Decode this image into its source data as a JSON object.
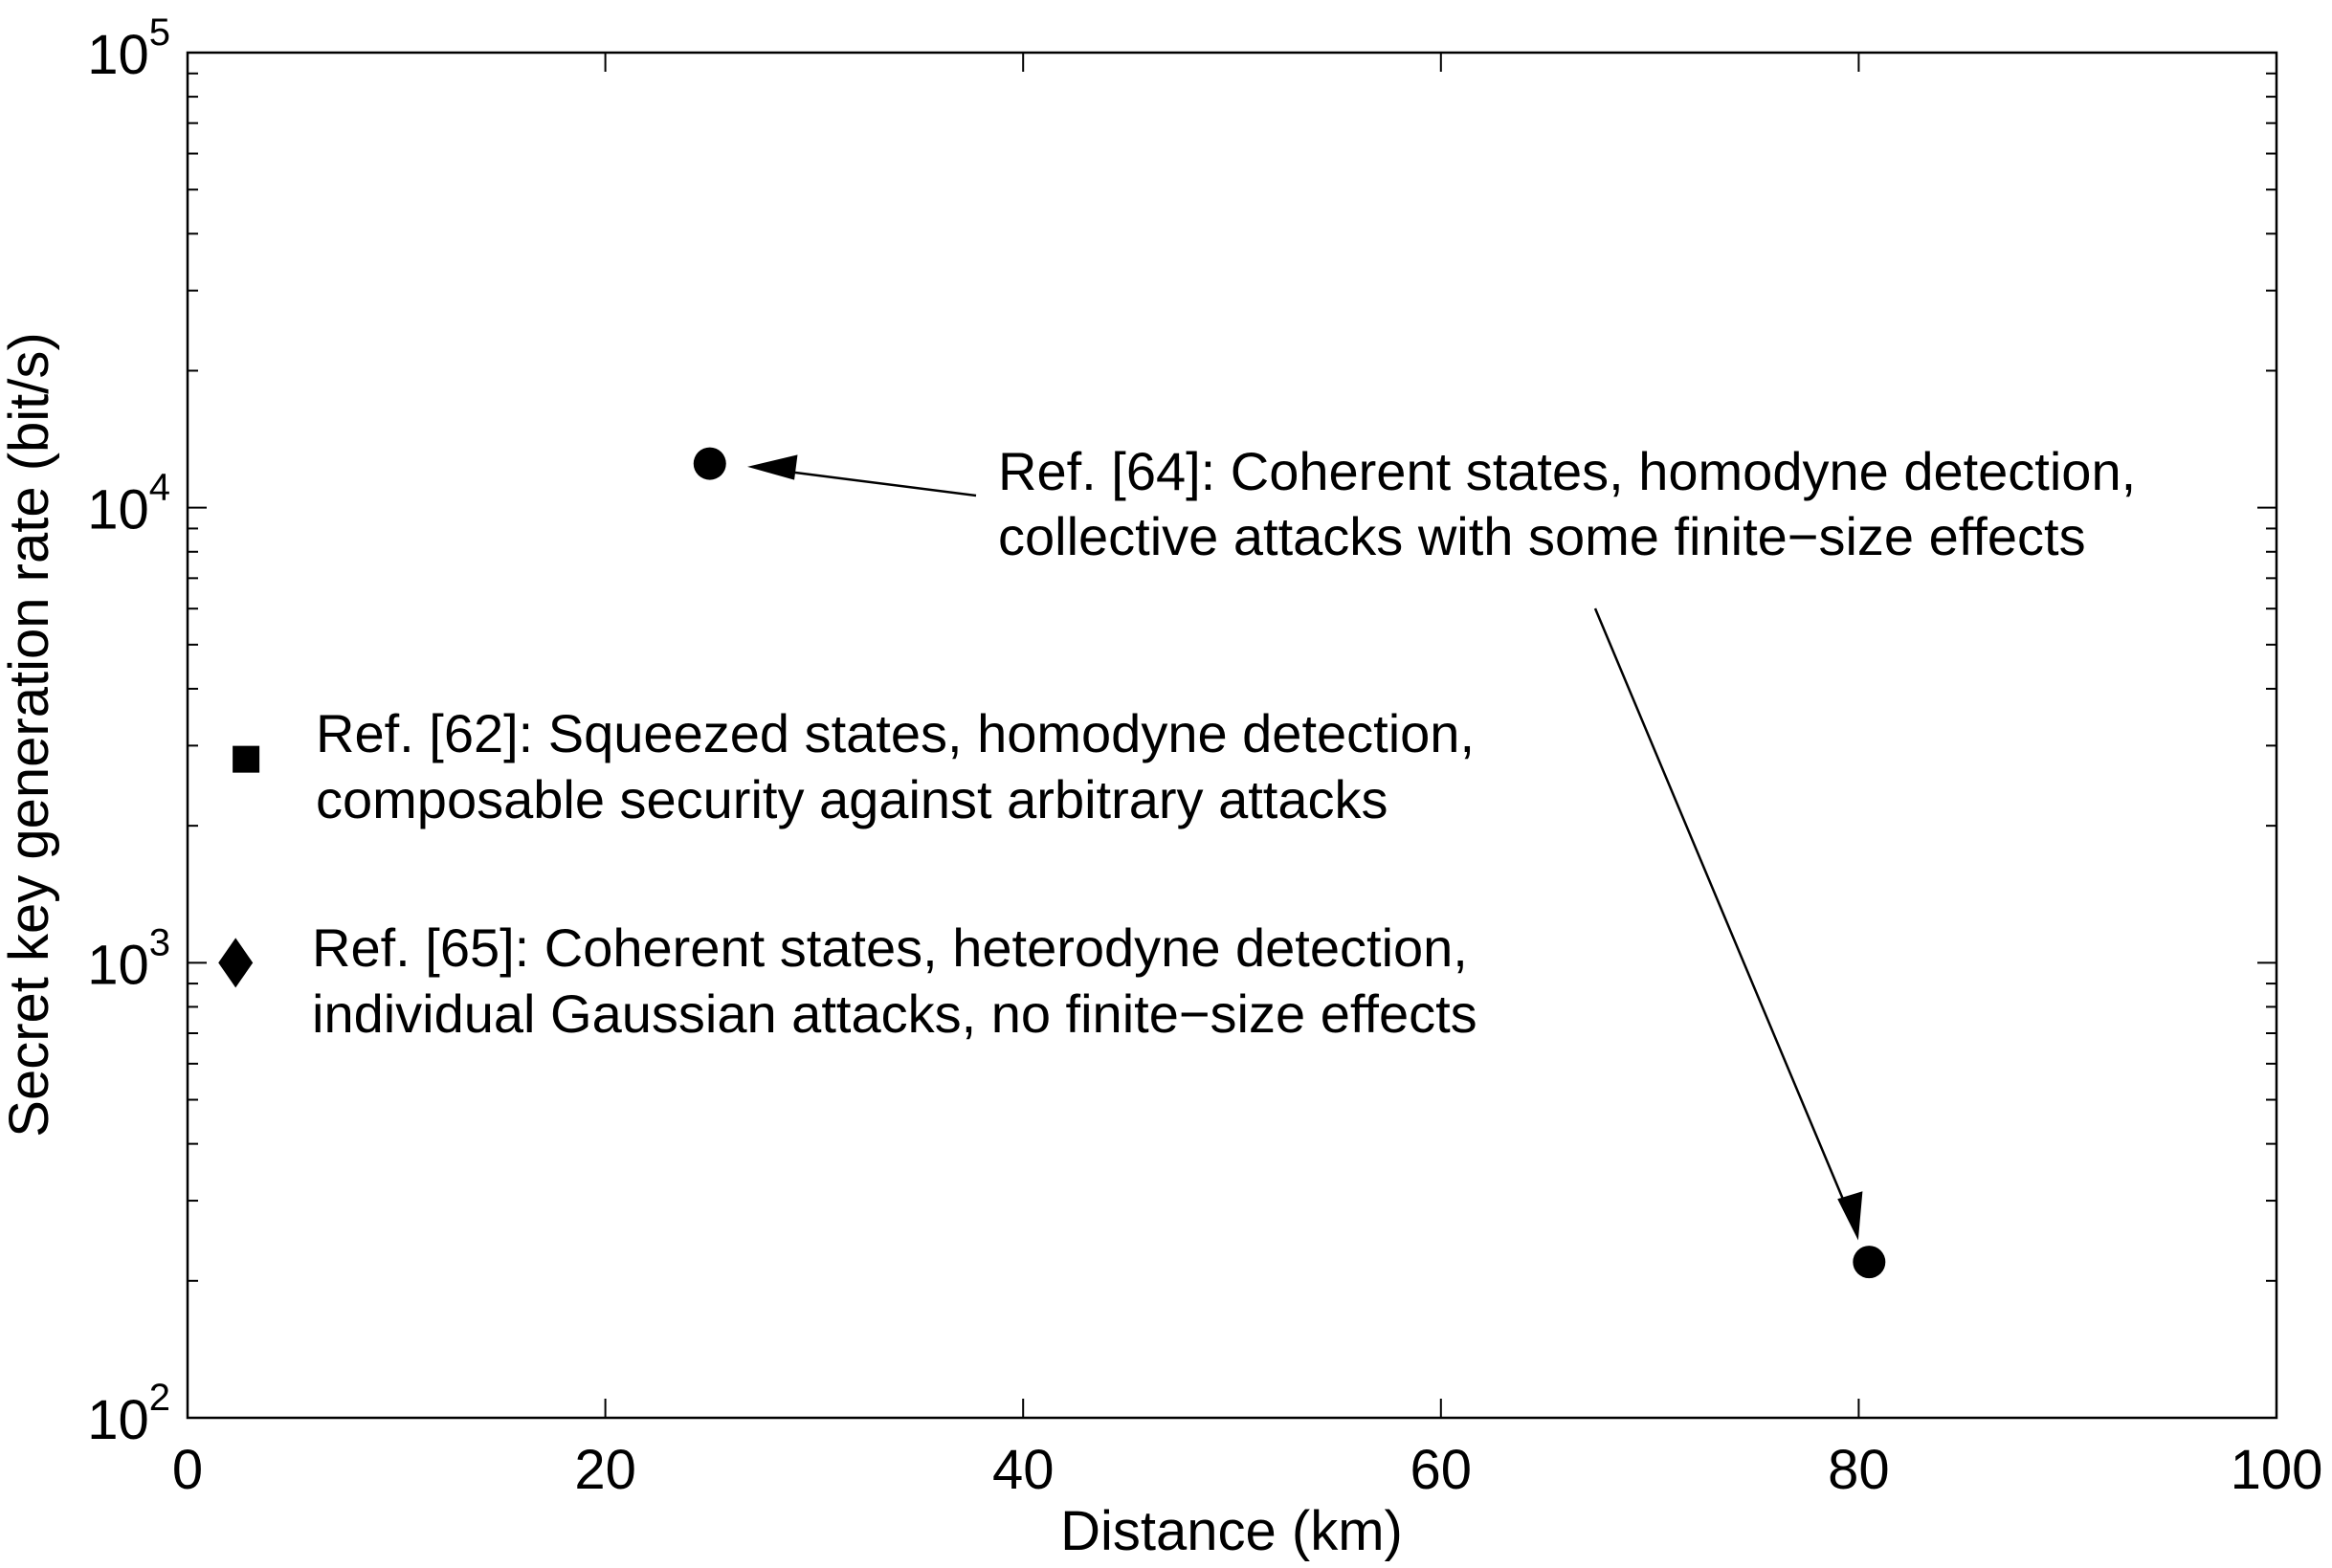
{
  "chart_data": {
    "type": "scatter",
    "title": "",
    "xlabel": "Distance (km)",
    "ylabel": "Secret key generation rate (bit/s)",
    "xlim": [
      0,
      100
    ],
    "ylim": [
      100,
      100000
    ],
    "yscale": "log",
    "grid": false,
    "x_ticks": [
      "0",
      "20",
      "40",
      "60",
      "80",
      "100"
    ],
    "y_ticks": [
      {
        "base": "10",
        "exp": "2"
      },
      {
        "base": "10",
        "exp": "3"
      },
      {
        "base": "10",
        "exp": "4"
      },
      {
        "base": "10",
        "exp": "5"
      }
    ],
    "points": [
      {
        "x": 25,
        "y": 12500,
        "marker": "circle",
        "ref": "64"
      },
      {
        "x": 80.5,
        "y": 220,
        "marker": "circle",
        "ref": "64"
      },
      {
        "x": 2.8,
        "y": 2800,
        "marker": "square",
        "ref": "62"
      },
      {
        "x": 2.3,
        "y": 1000,
        "marker": "diamond",
        "ref": "65"
      }
    ],
    "annotations": [
      {
        "lines": [
          "Ref. [64]: Coherent states, homodyne detection,",
          "collective attacks with some finite−size effects"
        ],
        "marker": "circle"
      },
      {
        "lines": [
          "Ref. [62]: Squeezed states, homodyne detection,",
          "composable security against arbitrary attacks"
        ],
        "marker": "square"
      },
      {
        "lines": [
          "Ref. [65]: Coherent states, heterodyne detection,",
          "individual Gaussian attacks, no finite−size effects"
        ],
        "marker": "diamond"
      }
    ]
  }
}
